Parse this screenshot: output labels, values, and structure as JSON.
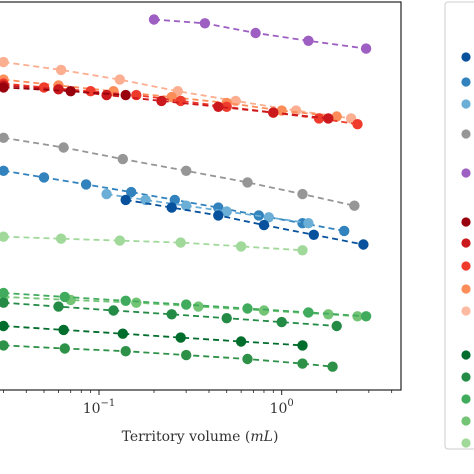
{
  "chart_data": {
    "type": "scatter",
    "xscale": "log",
    "xlabel_prefix": "Territory volume (",
    "xlabel_unit": "mL",
    "xlabel_suffix": ")",
    "xlim": [
      0.028,
      4.5
    ],
    "ylim": [
      0,
      1
    ],
    "xtick_labels": [
      {
        "value": 0.1,
        "base": "10",
        "exp": "−1"
      },
      {
        "value": 1,
        "base": "10",
        "exp": "0"
      }
    ],
    "grid": false,
    "legend_placement": "right",
    "legend_entries": [
      {
        "color": "#08519c"
      },
      {
        "color": "#3182bd"
      },
      {
        "color": "#6baed6"
      },
      {
        "color": "#969696"
      },
      {
        "color": "#9e5fc2"
      },
      {
        "color": "#99000d"
      },
      {
        "color": "#cb181d"
      },
      {
        "color": "#ef3b2c"
      },
      {
        "color": "#fc8d59"
      },
      {
        "color": "#fcbba1"
      },
      {
        "color": "#006d2c"
      },
      {
        "color": "#238b45"
      },
      {
        "color": "#41ab5d"
      },
      {
        "color": "#74c476"
      },
      {
        "color": "#a1d99b"
      }
    ],
    "series": [
      {
        "color": "#9e5fc2",
        "x": [
          0.2,
          0.38,
          0.72,
          1.4,
          2.9
        ],
        "y": [
          0.955,
          0.945,
          0.92,
          0.9,
          0.88
        ]
      },
      {
        "color": "#fcae91",
        "x": [
          0.03,
          0.062,
          0.13,
          0.27,
          0.56,
          1.2,
          2.4
        ],
        "y": [
          0.845,
          0.825,
          0.8,
          0.77,
          0.745,
          0.72,
          0.7
        ]
      },
      {
        "color": "#fc8d59",
        "x": [
          0.03,
          0.06,
          0.12,
          0.25,
          0.5,
          1.0,
          2.0
        ],
        "y": [
          0.8,
          0.785,
          0.77,
          0.755,
          0.74,
          0.72,
          0.705
        ]
      },
      {
        "color": "#ef3b2c",
        "x": [
          0.03,
          0.05,
          0.09,
          0.16,
          0.28,
          0.5,
          0.9,
          1.6,
          2.6
        ],
        "y": [
          0.79,
          0.78,
          0.77,
          0.76,
          0.745,
          0.73,
          0.715,
          0.7,
          0.685
        ]
      },
      {
        "color": "#cb181d",
        "x": [
          0.03,
          0.06,
          0.11,
          0.22,
          0.45,
          0.9,
          1.8
        ],
        "y": [
          0.785,
          0.775,
          0.76,
          0.745,
          0.73,
          0.715,
          0.7
        ]
      },
      {
        "color": "#99000d",
        "x": [
          0.03,
          0.07,
          0.14
        ],
        "y": [
          0.78,
          0.77,
          0.76
        ]
      },
      {
        "color": "#969696",
        "x": [
          0.03,
          0.064,
          0.135,
          0.3,
          0.65,
          1.3,
          2.5
        ],
        "y": [
          0.65,
          0.625,
          0.595,
          0.565,
          0.535,
          0.505,
          0.475
        ]
      },
      {
        "color": "#3182bd",
        "x": [
          0.03,
          0.05,
          0.085,
          0.15,
          0.26,
          0.45,
          0.75,
          1.3,
          2.2
        ],
        "y": [
          0.565,
          0.548,
          0.53,
          0.51,
          0.49,
          0.47,
          0.45,
          0.43,
          0.41
        ]
      },
      {
        "color": "#6baed6",
        "x": [
          0.11,
          0.18,
          0.3,
          0.5,
          0.85,
          1.4
        ],
        "y": [
          0.505,
          0.49,
          0.475,
          0.46,
          0.445,
          0.43
        ]
      },
      {
        "color": "#08519c",
        "x": [
          0.14,
          0.25,
          0.45,
          0.8,
          1.5,
          2.8
        ],
        "y": [
          0.49,
          0.47,
          0.45,
          0.425,
          0.4,
          0.375
        ]
      },
      {
        "color": "#a1d99b",
        "x": [
          0.03,
          0.062,
          0.13,
          0.28,
          0.6,
          1.3
        ],
        "y": [
          0.395,
          0.39,
          0.385,
          0.38,
          0.37,
          0.36
        ]
      },
      {
        "color": "#74c476",
        "x": [
          0.03,
          0.07,
          0.16,
          0.35,
          0.8,
          1.8,
          2.6
        ],
        "y": [
          0.24,
          0.232,
          0.225,
          0.215,
          0.205,
          0.195,
          0.19
        ]
      },
      {
        "color": "#41ab5d",
        "x": [
          0.03,
          0.065,
          0.14,
          0.3,
          0.65,
          1.4,
          2.9
        ],
        "y": [
          0.25,
          0.24,
          0.23,
          0.22,
          0.21,
          0.2,
          0.19
        ]
      },
      {
        "color": "#238b45",
        "x": [
          0.03,
          0.06,
          0.12,
          0.25,
          0.5,
          1.0,
          2.0
        ],
        "y": [
          0.225,
          0.215,
          0.205,
          0.195,
          0.185,
          0.175,
          0.165
        ]
      },
      {
        "color": "#006d2c",
        "x": [
          0.03,
          0.064,
          0.135,
          0.28,
          0.6,
          1.3
        ],
        "y": [
          0.165,
          0.155,
          0.145,
          0.135,
          0.125,
          0.115
        ]
      },
      {
        "color": "#2e9148",
        "x": [
          0.03,
          0.065,
          0.14,
          0.3,
          0.65,
          1.3,
          1.9
        ],
        "y": [
          0.115,
          0.107,
          0.1,
          0.09,
          0.08,
          0.068,
          0.06
        ]
      }
    ]
  }
}
